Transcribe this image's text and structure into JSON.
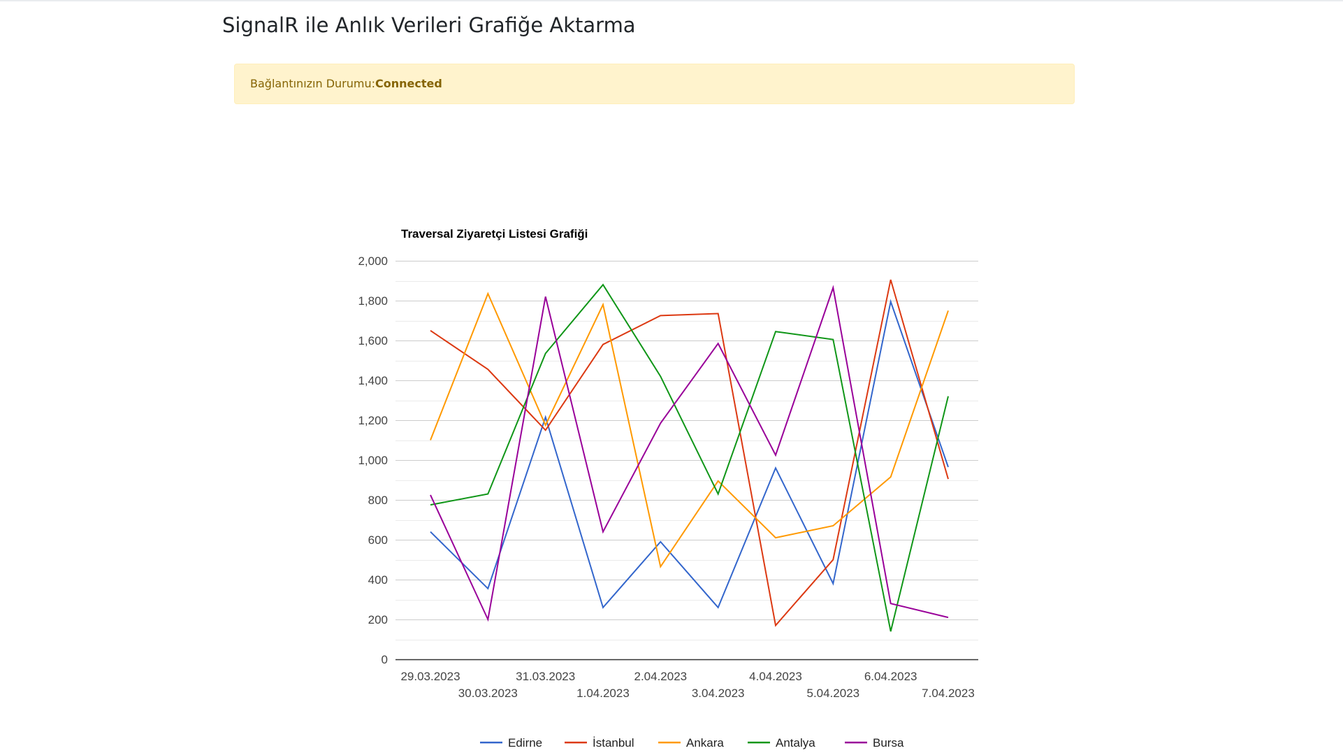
{
  "page": {
    "title": "SignalR ile Anlık Verileri Grafiğe Aktarma"
  },
  "status": {
    "label": "Bağlantınızın Durumu:",
    "value": "Connected"
  },
  "colors": {
    "alert_bg": "#fff3cd",
    "alert_text": "#856404"
  },
  "chart_data": {
    "type": "line",
    "title": "Traversal Ziyaretçi Listesi Grafiği",
    "xlabel": "",
    "ylabel": "",
    "categories": [
      "29.03.2023",
      "30.03.2023",
      "31.03.2023",
      "1.04.2023",
      "2.04.2023",
      "3.04.2023",
      "4.04.2023",
      "5.04.2023",
      "6.04.2023",
      "7.04.2023"
    ],
    "ylim": [
      0,
      2000
    ],
    "yticks": [
      0,
      200,
      400,
      600,
      800,
      1000,
      1200,
      1400,
      1600,
      1800,
      2000
    ],
    "ytick_labels": [
      "0",
      "200",
      "400",
      "600",
      "800",
      "1,000",
      "1,200",
      "1,400",
      "1,600",
      "1,800",
      "2,000"
    ],
    "grid": true,
    "legend_position": "bottom",
    "series": [
      {
        "name": "Edirne",
        "color": "#3366cc",
        "values": [
          640,
          355,
          1215,
          260,
          590,
          260,
          960,
          380,
          1795,
          965
        ]
      },
      {
        "name": "İstanbul",
        "color": "#dc3912",
        "values": [
          1650,
          1455,
          1150,
          1580,
          1725,
          1735,
          170,
          500,
          1905,
          905
        ]
      },
      {
        "name": "Ankara",
        "color": "#ff9900",
        "values": [
          1100,
          1835,
          1175,
          1780,
          465,
          895,
          610,
          670,
          915,
          1750
        ]
      },
      {
        "name": "Antalya",
        "color": "#109618",
        "values": [
          775,
          830,
          1535,
          1880,
          1420,
          830,
          1645,
          1605,
          140,
          1320
        ]
      },
      {
        "name": "Bursa",
        "color": "#990099",
        "values": [
          825,
          200,
          1820,
          640,
          1185,
          1585,
          1025,
          1865,
          280,
          210
        ]
      }
    ]
  }
}
